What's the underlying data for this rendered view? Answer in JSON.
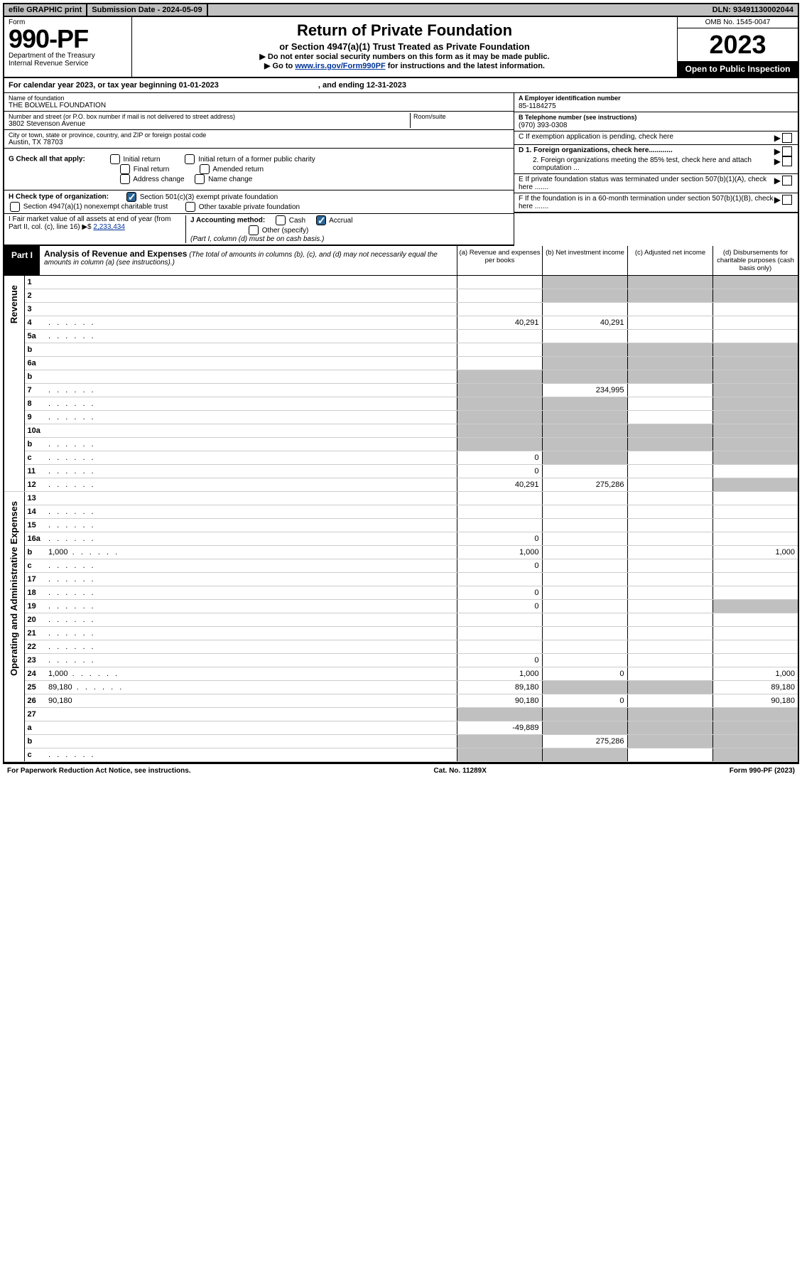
{
  "topbar": {
    "efile": "efile GRAPHIC print",
    "sub_label": "Submission Date - 2024-05-09",
    "dln": "DLN: 93491130002044"
  },
  "header": {
    "form_word": "Form",
    "form_num": "990-PF",
    "dept1": "Department of the Treasury",
    "dept2": "Internal Revenue Service",
    "title": "Return of Private Foundation",
    "subtitle": "or Section 4947(a)(1) Trust Treated as Private Foundation",
    "note1": "▶ Do not enter social security numbers on this form as it may be made public.",
    "note2_pre": "▶ Go to ",
    "note2_link": "www.irs.gov/Form990PF",
    "note2_post": " for instructions and the latest information.",
    "omb": "OMB No. 1545-0047",
    "year": "2023",
    "open": "Open to Public Inspection"
  },
  "cal": {
    "text": "For calendar year 2023, or tax year beginning 01-01-2023",
    "end": ", and ending 12-31-2023"
  },
  "info": {
    "name_label": "Name of foundation",
    "name": "THE BOLWELL FOUNDATION",
    "addr_label": "Number and street (or P.O. box number if mail is not delivered to street address)",
    "addr": "3802 Stevenson Avenue",
    "room_label": "Room/suite",
    "city_label": "City or town, state or province, country, and ZIP or foreign postal code",
    "city": "Austin, TX  78703",
    "A_label": "A Employer identification number",
    "A": "85-1184275",
    "B_label": "B Telephone number (see instructions)",
    "B": "(970) 393-0308",
    "C": "C If exemption application is pending, check here",
    "D1": "D 1. Foreign organizations, check here............",
    "D2": "2. Foreign organizations meeting the 85% test, check here and attach computation ...",
    "E": "E  If private foundation status was terminated under section 507(b)(1)(A), check here .......",
    "F": "F  If the foundation is in a 60-month termination under section 507(b)(1)(B), check here ......."
  },
  "G": {
    "label": "G Check all that apply:",
    "o1": "Initial return",
    "o2": "Final return",
    "o3": "Address change",
    "o4": "Initial return of a former public charity",
    "o5": "Amended return",
    "o6": "Name change"
  },
  "H": {
    "label": "H Check type of organization:",
    "o1": "Section 501(c)(3) exempt private foundation",
    "o2": "Section 4947(a)(1) nonexempt charitable trust",
    "o3": "Other taxable private foundation"
  },
  "I": {
    "label": "I Fair market value of all assets at end of year (from Part II, col. (c), line 16) ▶$ ",
    "amt": "2,233,434"
  },
  "J": {
    "label": "J Accounting method:",
    "cash": "Cash",
    "accrual": "Accrual",
    "other": "Other (specify)",
    "note": "(Part I, column (d) must be on cash basis.)"
  },
  "part1": {
    "label": "Part I",
    "title": "Analysis of Revenue and Expenses",
    "note": " (The total of amounts in columns (b), (c), and (d) may not necessarily equal the amounts in column (a) (see instructions).)",
    "col_a": "(a)   Revenue and expenses per books",
    "col_b": "(b)   Net investment income",
    "col_c": "(c)   Adjusted net income",
    "col_d": "(d)   Disbursements for charitable purposes (cash basis only)"
  },
  "sections": {
    "rev": "Revenue",
    "exp": "Operating and Administrative Expenses"
  },
  "lines": [
    {
      "n": "1",
      "d": "",
      "a": "",
      "b": "",
      "c": "",
      "sd": true
    },
    {
      "n": "2",
      "d": "",
      "a": "",
      "b": "",
      "c": "",
      "sd": true,
      "chk": true
    },
    {
      "n": "3",
      "d": "",
      "a": "",
      "b": "",
      "c": ""
    },
    {
      "n": "4",
      "d": "",
      "a": "40,291",
      "b": "40,291",
      "c": "",
      "dot": true
    },
    {
      "n": "5a",
      "d": "",
      "a": "",
      "b": "",
      "c": "",
      "dot": true
    },
    {
      "n": "b",
      "d": "",
      "a": "",
      "b": "",
      "c": "",
      "shb": true,
      "shc": true,
      "shd": true,
      "inline": true
    },
    {
      "n": "6a",
      "d": "",
      "a": "",
      "b": "",
      "c": "",
      "shb": true,
      "shc": true,
      "shd": true
    },
    {
      "n": "b",
      "d": "",
      "a": "",
      "b": "",
      "c": "",
      "sha": true,
      "shb": true,
      "shc": true,
      "shd": true,
      "inline": true
    },
    {
      "n": "7",
      "d": "",
      "a": "",
      "b": "234,995",
      "c": "",
      "sha": true,
      "shd": true,
      "dot": true
    },
    {
      "n": "8",
      "d": "",
      "a": "",
      "b": "",
      "c": "",
      "sha": true,
      "shb": true,
      "shd": true,
      "dot": true
    },
    {
      "n": "9",
      "d": "",
      "a": "",
      "b": "",
      "c": "",
      "sha": true,
      "shb": true,
      "shd": true,
      "dot": true
    },
    {
      "n": "10a",
      "d": "",
      "a": "",
      "b": "",
      "c": "",
      "sha": true,
      "shb": true,
      "shc": true,
      "shd": true,
      "inline": true
    },
    {
      "n": "b",
      "d": "",
      "a": "",
      "b": "",
      "c": "",
      "sha": true,
      "shb": true,
      "shc": true,
      "shd": true,
      "inline": true,
      "dot": true
    },
    {
      "n": "c",
      "d": "",
      "a": "0",
      "b": "",
      "c": "",
      "shb": true,
      "shd": true,
      "dot": true
    },
    {
      "n": "11",
      "d": "",
      "a": "0",
      "b": "",
      "c": "",
      "dot": true
    },
    {
      "n": "12",
      "d": "",
      "a": "40,291",
      "b": "275,286",
      "c": "",
      "shd": true,
      "dot": true
    }
  ],
  "exp_lines": [
    {
      "n": "13",
      "d": "",
      "a": "",
      "b": "",
      "c": ""
    },
    {
      "n": "14",
      "d": "",
      "a": "",
      "b": "",
      "c": "",
      "dot": true
    },
    {
      "n": "15",
      "d": "",
      "a": "",
      "b": "",
      "c": "",
      "dot": true
    },
    {
      "n": "16a",
      "d": "",
      "a": "0",
      "b": "",
      "c": "",
      "dot": true
    },
    {
      "n": "b",
      "d": "1,000",
      "a": "1,000",
      "b": "",
      "c": "",
      "dot": true
    },
    {
      "n": "c",
      "d": "",
      "a": "0",
      "b": "",
      "c": "",
      "dot": true
    },
    {
      "n": "17",
      "d": "",
      "a": "",
      "b": "",
      "c": "",
      "dot": true
    },
    {
      "n": "18",
      "d": "",
      "a": "0",
      "b": "",
      "c": "",
      "dot": true
    },
    {
      "n": "19",
      "d": "",
      "a": "0",
      "b": "",
      "c": "",
      "shd": true,
      "dot": true
    },
    {
      "n": "20",
      "d": "",
      "a": "",
      "b": "",
      "c": "",
      "dot": true
    },
    {
      "n": "21",
      "d": "",
      "a": "",
      "b": "",
      "c": "",
      "dot": true
    },
    {
      "n": "22",
      "d": "",
      "a": "",
      "b": "",
      "c": "",
      "dot": true
    },
    {
      "n": "23",
      "d": "",
      "a": "0",
      "b": "",
      "c": "",
      "dot": true
    },
    {
      "n": "24",
      "d": "1,000",
      "a": "1,000",
      "b": "0",
      "c": "",
      "dot": true
    },
    {
      "n": "25",
      "d": "89,180",
      "a": "89,180",
      "b": "",
      "c": "",
      "shb": true,
      "shc": true,
      "dot": true
    },
    {
      "n": "26",
      "d": "90,180",
      "a": "90,180",
      "b": "0",
      "c": ""
    },
    {
      "n": "27",
      "d": "",
      "a": "",
      "b": "",
      "c": "",
      "sha": true,
      "shb": true,
      "shc": true,
      "shd": true
    },
    {
      "n": "a",
      "d": "",
      "a": "-49,889",
      "b": "",
      "c": "",
      "shb": true,
      "shc": true,
      "shd": true
    },
    {
      "n": "b",
      "d": "",
      "a": "",
      "b": "275,286",
      "c": "",
      "sha": true,
      "shc": true,
      "shd": true
    },
    {
      "n": "c",
      "d": "",
      "a": "",
      "b": "",
      "c": "",
      "sha": true,
      "shb": true,
      "shd": true,
      "dot": true
    }
  ],
  "footer": {
    "left": "For Paperwork Reduction Act Notice, see instructions.",
    "mid": "Cat. No. 11289X",
    "right": "Form 990-PF (2023)"
  }
}
